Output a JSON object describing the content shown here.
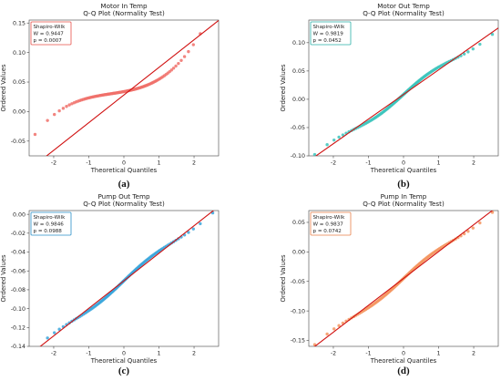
{
  "chart_data": [
    {
      "type": "scatter",
      "title": "Motor In Temp",
      "subtitle": "Q-Q Plot (Normality Test)",
      "xlabel": "Theoretical Quantiles",
      "ylabel": "Ordered Values",
      "panel_label": "(a)",
      "xlim": [
        -2.7,
        2.7
      ],
      "ylim": [
        -0.075,
        0.155
      ],
      "xticks": [
        -2,
        -1,
        0,
        1,
        2
      ],
      "yticks": [
        -0.05,
        0.0,
        0.05,
        0.1,
        0.15
      ],
      "ytick_labels": [
        "-0.05",
        "0.00",
        "0.05",
        "0.10",
        "0.15"
      ],
      "grid": false,
      "color": "#f0706a",
      "box_color": "#e8504a",
      "stats": {
        "title": "Shapiro-Wilk",
        "w": "W = 0.9447",
        "p": "p = 0.0007"
      },
      "line": {
        "slope": 0.0468,
        "intercept": 0.028
      },
      "dist": {
        "type": "cubic",
        "a": 0.0338,
        "b": 0.0056,
        "c": 0.00278
      }
    },
    {
      "type": "scatter",
      "title": "Motor Out Temp",
      "subtitle": "Q-Q Plot (Normality Test)",
      "xlabel": "Theoretical Quantiles",
      "ylabel": "Ordered Values",
      "panel_label": "(b)",
      "xlim": [
        -2.7,
        2.7
      ],
      "ylim": [
        -0.1,
        0.14
      ],
      "xticks": [
        -2,
        -1,
        0,
        1,
        2
      ],
      "yticks": [
        -0.1,
        -0.05,
        0.0,
        0.05,
        0.1
      ],
      "ytick_labels": [
        "-0.10",
        "-0.05",
        "0.00",
        "0.05",
        "0.10"
      ],
      "grid": false,
      "color": "#3cc4bc",
      "box_color": "#2ab0a8",
      "stats": {
        "title": "Shapiro-Wilk",
        "w": "W = 0.9819",
        "p": "p = 0.0452"
      },
      "line": {
        "slope": 0.0435,
        "intercept": 0.0085
      },
      "dist": {
        "type": "sine",
        "amp": 0.006
      }
    },
    {
      "type": "scatter",
      "title": "Pump Out Temp",
      "subtitle": "Q-Q Plot (Normality Test)",
      "xlabel": "Theoretical Quantiles",
      "ylabel": "Ordered Values",
      "panel_label": "(c)",
      "xlim": [
        -2.7,
        2.7
      ],
      "ylim": [
        -0.14,
        0.004
      ],
      "xticks": [
        -2,
        -1,
        0,
        1,
        2
      ],
      "yticks": [
        -0.14,
        -0.12,
        -0.1,
        -0.08,
        -0.06,
        -0.04,
        -0.02,
        0.0
      ],
      "ytick_labels": [
        "-0.14",
        "-0.12",
        "-0.10",
        "-0.08",
        "-0.06",
        "-0.04",
        "-0.02",
        "0.00"
      ],
      "grid": false,
      "color": "#3aa6dc",
      "box_color": "#2a90c8",
      "stats": {
        "title": "Shapiro-Wilk",
        "w": "W = 0.9846",
        "p": "p = 0.0988"
      },
      "line": {
        "slope": 0.0292,
        "intercept": -0.0705
      },
      "dist": {
        "type": "sine",
        "amp": 0.003
      }
    },
    {
      "type": "scatter",
      "title": "Pump In Temp",
      "subtitle": "Q-Q Plot (Normality Test)",
      "xlabel": "Theoretical Quantiles",
      "ylabel": "Ordered Values",
      "panel_label": "(d)",
      "xlim": [
        -2.7,
        2.7
      ],
      "ylim": [
        -0.16,
        0.07
      ],
      "xticks": [
        -2,
        -1,
        0,
        1,
        2
      ],
      "yticks": [
        -0.15,
        -0.1,
        -0.05,
        0.0,
        0.05
      ],
      "ytick_labels": [
        "-0.15",
        "-0.10",
        "-0.05",
        "0.00",
        "0.05"
      ],
      "grid": false,
      "color": "#f5955f",
      "box_color": "#e8804a",
      "stats": {
        "title": "Shapiro-Wilk",
        "w": "W = 0.9837",
        "p": "p = 0.0742"
      },
      "line": {
        "slope": 0.0455,
        "intercept": -0.045
      },
      "dist": {
        "type": "sine",
        "amp": 0.005
      }
    }
  ]
}
